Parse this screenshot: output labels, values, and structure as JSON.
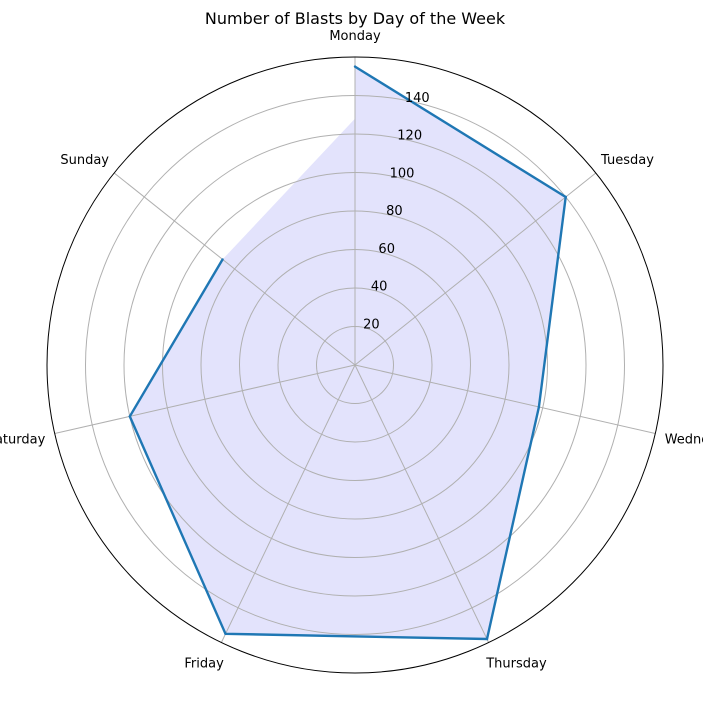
{
  "chart_data": {
    "type": "radar",
    "title": "Number of Blasts by Day of the Week",
    "categories": [
      "Monday",
      "Tuesday",
      "Wednesday",
      "Thursday",
      "Friday",
      "Saturday",
      "Sunday"
    ],
    "series": [
      {
        "values": [
          155,
          140,
          98,
          158,
          155,
          120,
          88
        ]
      }
    ],
    "closing_value": 128,
    "rlim": [
      0,
      160
    ],
    "radial_ticks": [
      "20",
      "40",
      "60",
      "80",
      "100",
      "120",
      "140"
    ],
    "grid": true,
    "line_color": "#1f77b4",
    "fill_color": "#e3e3fc"
  }
}
